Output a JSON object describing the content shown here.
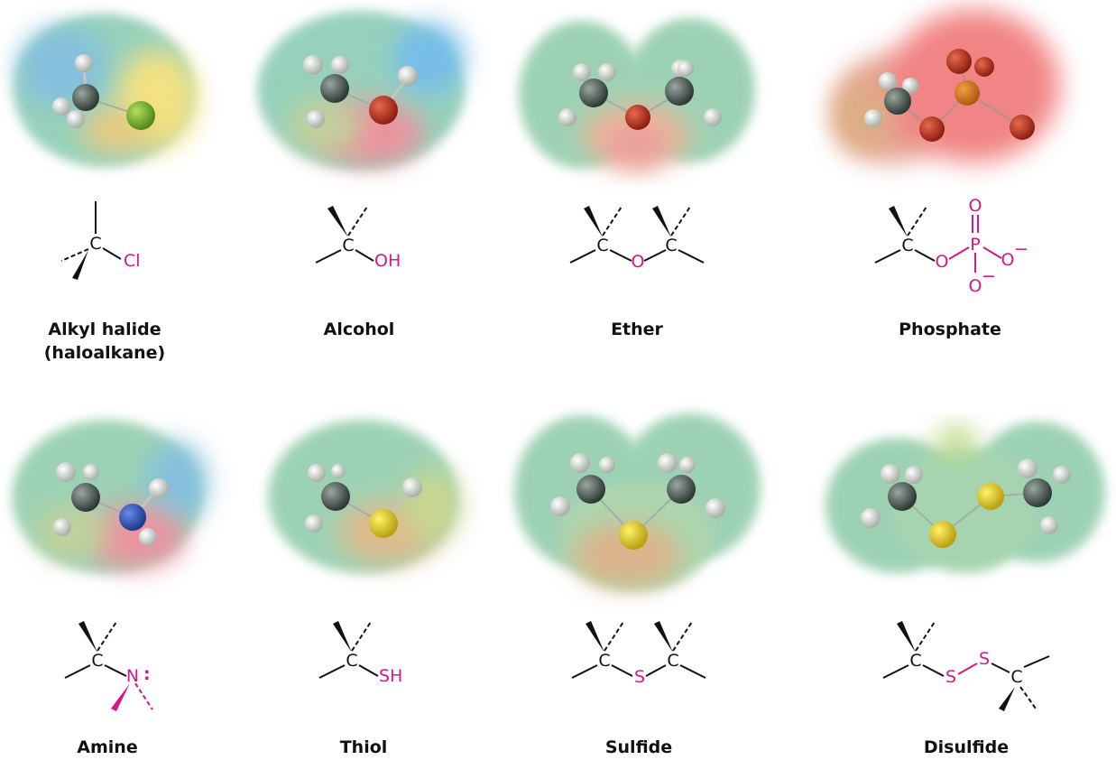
{
  "colors": {
    "heteroatom": "#d6168c",
    "bond": "#111111"
  },
  "groups": [
    {
      "id": "alkyl-halide",
      "name": "Alkyl halide",
      "subname": "(haloalkane)",
      "labels": {
        "c": "C",
        "hetero": "Cl"
      }
    },
    {
      "id": "alcohol",
      "name": "Alcohol",
      "labels": {
        "c": "C",
        "hetero": "OH"
      }
    },
    {
      "id": "ether",
      "name": "Ether",
      "labels": {
        "c1": "C",
        "o": "O",
        "c2": "C"
      }
    },
    {
      "id": "phosphate",
      "name": "Phosphate",
      "labels": {
        "c": "C",
        "o_bridge": "O",
        "p": "P",
        "o_top": "O",
        "o_right": "O",
        "o_bottom": "O",
        "minus_right": "−",
        "minus_bottom": "−"
      }
    },
    {
      "id": "amine",
      "name": "Amine",
      "labels": {
        "c": "C",
        "n": "N",
        "lone_pair": ":"
      }
    },
    {
      "id": "thiol",
      "name": "Thiol",
      "labels": {
        "c": "C",
        "hetero": "SH"
      }
    },
    {
      "id": "sulfide",
      "name": "Sulfide",
      "labels": {
        "c1": "C",
        "s": "S",
        "c2": "C"
      }
    },
    {
      "id": "disulfide",
      "name": "Disulfide",
      "labels": {
        "c1": "C",
        "s1": "S",
        "s2": "S",
        "c2": "C"
      }
    }
  ]
}
